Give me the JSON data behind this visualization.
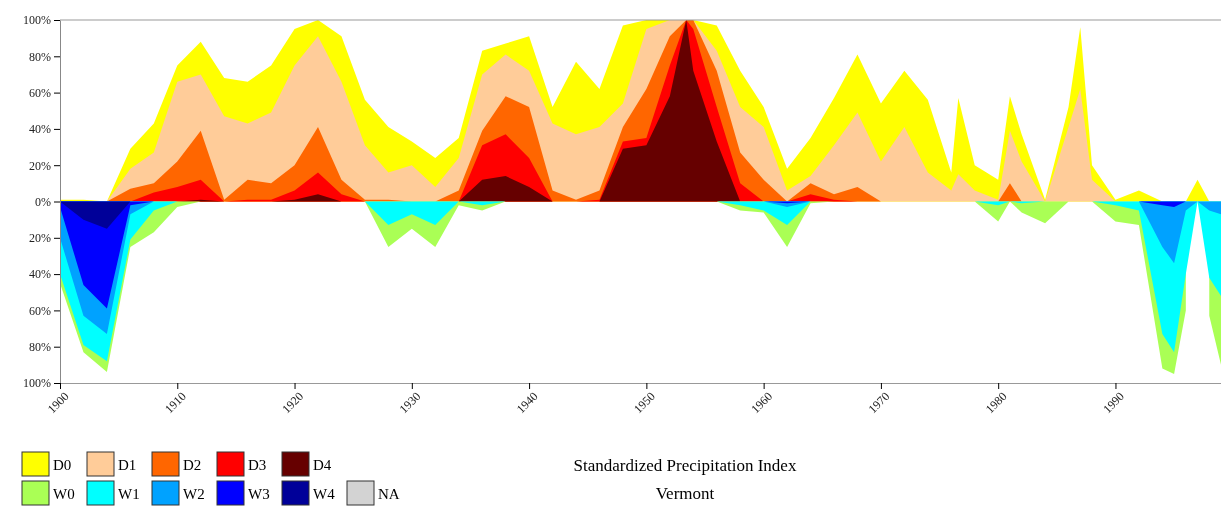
{
  "chart_data": {
    "type": "area",
    "title": "Standardized Precipitation Index",
    "subtitle": "Vermont",
    "x": [
      1900,
      1902,
      1904,
      1906,
      1908,
      1910,
      1912,
      1914,
      1916,
      1918,
      1920,
      1922,
      1924,
      1926,
      1928,
      1930,
      1932,
      1934,
      1936,
      1938,
      1940,
      1942,
      1944,
      1946,
      1948,
      1950,
      1952,
      1953.4,
      1954,
      1956,
      1958,
      1960,
      1962,
      1964,
      1966,
      1968,
      1970,
      1972,
      1974,
      1976,
      1976.6,
      1978,
      1980,
      1981,
      1982,
      1984,
      1986,
      1987,
      1988,
      1990,
      1992,
      1994,
      1995,
      1996,
      1997,
      1998,
      1999
    ],
    "xlim": [
      1900,
      1999
    ],
    "xticks": [
      1900,
      1910,
      1920,
      1930,
      1940,
      1950,
      1960,
      1970,
      1980,
      1990
    ],
    "ylim": [
      -100,
      100
    ],
    "yticks": [
      {
        "value": -100,
        "label": "100%"
      },
      {
        "value": -80,
        "label": "80%"
      },
      {
        "value": -60,
        "label": "60%"
      },
      {
        "value": -40,
        "label": "40%"
      },
      {
        "value": -20,
        "label": "20%"
      },
      {
        "value": 0,
        "label": "0%"
      },
      {
        "value": 20,
        "label": "20%"
      },
      {
        "value": 40,
        "label": "40%"
      },
      {
        "value": 60,
        "label": "60%"
      },
      {
        "value": 80,
        "label": "80%"
      },
      {
        "value": 100,
        "label": "100%"
      }
    ],
    "legend": "bottom left",
    "series": [
      {
        "name": "D0",
        "color": "#ffff00",
        "values": [
          1,
          1,
          0,
          29,
          43,
          75,
          88,
          68,
          66,
          75,
          95,
          100,
          91,
          56,
          41,
          33,
          24,
          35,
          83,
          87,
          91,
          52,
          77,
          62,
          97,
          100,
          100,
          100,
          100,
          97,
          72,
          52,
          18,
          35,
          57,
          81,
          54,
          72,
          56,
          16,
          57,
          20,
          12,
          58,
          37,
          1,
          52,
          96,
          20,
          1,
          6,
          0,
          null,
          0,
          12,
          0,
          null
        ]
      },
      {
        "name": "D1",
        "color": "#ffcc99",
        "values": [
          null,
          null,
          0,
          18,
          27,
          66,
          70,
          47,
          43,
          49,
          75,
          91,
          66,
          31,
          16,
          20,
          8,
          24,
          70,
          81,
          72,
          43,
          37,
          41,
          54,
          95,
          100,
          100,
          100,
          83,
          52,
          41,
          6,
          14,
          31,
          49,
          22,
          41,
          16,
          6,
          15,
          6,
          1,
          39,
          22,
          0,
          41,
          62,
          12,
          0,
          null,
          null,
          null,
          null,
          null,
          null,
          null
        ]
      },
      {
        "name": "D2",
        "color": "#ff6600",
        "values": [
          null,
          null,
          0,
          7,
          10,
          22,
          39,
          1,
          12,
          10,
          20,
          41,
          12,
          1,
          1,
          0,
          0,
          6,
          39,
          58,
          52,
          6,
          1,
          6,
          41,
          62,
          91,
          100,
          100,
          72,
          27,
          12,
          0,
          10,
          4,
          8,
          0,
          null,
          null,
          null,
          null,
          null,
          0,
          10,
          0,
          null,
          null,
          null,
          null,
          null,
          null,
          null,
          null,
          null,
          null,
          null,
          null
        ]
      },
      {
        "name": "D3",
        "color": "#ff0000",
        "values": [
          null,
          null,
          null,
          0,
          5,
          8,
          12,
          0,
          1,
          1,
          6,
          16,
          4,
          0,
          null,
          null,
          null,
          0,
          31,
          37,
          24,
          0,
          0,
          1,
          33,
          35,
          75,
          100,
          95,
          52,
          10,
          0,
          0,
          4,
          1,
          0,
          null,
          null,
          null,
          null,
          null,
          null,
          null,
          null,
          null,
          null,
          null,
          null,
          null,
          null,
          null,
          null,
          null,
          null,
          null,
          null,
          null
        ]
      },
      {
        "name": "D4",
        "color": "#660000",
        "values": [
          null,
          null,
          null,
          null,
          null,
          0,
          1,
          0,
          null,
          0,
          1,
          4,
          0,
          null,
          null,
          null,
          null,
          0,
          12,
          14,
          8,
          0,
          null,
          0,
          29,
          31,
          58,
          100,
          72,
          33,
          0,
          null,
          null,
          null,
          null,
          null,
          null,
          null,
          null,
          null,
          null,
          null,
          null,
          null,
          null,
          null,
          null,
          null,
          null,
          null,
          null,
          null,
          null,
          null,
          null,
          null,
          null
        ]
      },
      {
        "name": "W0",
        "color": "#aaff55",
        "values": [
          -45,
          -83,
          -94,
          -25,
          -17,
          -3,
          0,
          null,
          null,
          null,
          null,
          null,
          null,
          0,
          -25,
          -15,
          -25,
          -2,
          -5,
          0,
          null,
          null,
          null,
          null,
          null,
          null,
          null,
          null,
          null,
          0,
          -5,
          -6,
          -25,
          -1,
          0,
          null,
          null,
          null,
          null,
          null,
          null,
          0,
          -11,
          0,
          -6,
          -12,
          0,
          null,
          0,
          -11,
          -13,
          -92,
          -95,
          -60,
          null,
          -63,
          -90
        ]
      },
      {
        "name": "W1",
        "color": "#00ffff",
        "values": [
          -40,
          -79,
          -88,
          -21,
          -5,
          0,
          null,
          null,
          null,
          null,
          null,
          null,
          null,
          0,
          -13,
          -7,
          -13,
          0,
          -2,
          0,
          null,
          null,
          null,
          null,
          null,
          null,
          null,
          null,
          null,
          0,
          -2,
          -5,
          -13,
          0,
          null,
          null,
          null,
          null,
          null,
          null,
          null,
          0,
          -2,
          0,
          -1,
          0,
          null,
          null,
          0,
          -2,
          -5,
          -73,
          -83,
          -40,
          0,
          -42,
          -52
        ]
      },
      {
        "name": "W2",
        "color": "#00a2ff",
        "values": [
          -20,
          -63,
          -73,
          -7,
          0,
          null,
          null,
          null,
          null,
          null,
          null,
          null,
          null,
          null,
          null,
          null,
          null,
          null,
          null,
          null,
          null,
          null,
          null,
          null,
          null,
          null,
          null,
          null,
          null,
          null,
          null,
          0,
          -3,
          0,
          null,
          null,
          null,
          null,
          null,
          null,
          null,
          null,
          null,
          null,
          null,
          null,
          null,
          null,
          null,
          null,
          0,
          -25,
          -34,
          -5,
          0,
          -5,
          -7
        ]
      },
      {
        "name": "W3",
        "color": "#0000ff",
        "values": [
          -3,
          -46,
          -59,
          -2,
          0,
          null,
          null,
          null,
          null,
          null,
          null,
          null,
          null,
          null,
          null,
          null,
          null,
          null,
          null,
          null,
          null,
          null,
          null,
          null,
          null,
          null,
          null,
          null,
          null,
          null,
          null,
          0,
          -1,
          0,
          null,
          null,
          null,
          null,
          null,
          null,
          null,
          null,
          null,
          null,
          null,
          null,
          null,
          null,
          null,
          null,
          0,
          -2,
          -3,
          0,
          null,
          null,
          null
        ]
      },
      {
        "name": "W4",
        "color": "#000099",
        "values": [
          0,
          -10,
          -15,
          0,
          null,
          null,
          null,
          null,
          null,
          null,
          null,
          null,
          null,
          null,
          null,
          null,
          null,
          null,
          null,
          null,
          null,
          null,
          null,
          null,
          null,
          null,
          null,
          null,
          null,
          null,
          null,
          null,
          null,
          null,
          null,
          null,
          null,
          null,
          null,
          null,
          null,
          null,
          null,
          null,
          null,
          null,
          null,
          null,
          null,
          null,
          null,
          null,
          null,
          null,
          null,
          null,
          null
        ]
      },
      {
        "name": "NA",
        "color": "#d3d3d3",
        "values": [
          null,
          null,
          null,
          null,
          null,
          null,
          null,
          null,
          null,
          null,
          null,
          null,
          null,
          null,
          null,
          null,
          null,
          null,
          null,
          null,
          null,
          null,
          null,
          null,
          null,
          null,
          null,
          null,
          null,
          null,
          null,
          null,
          null,
          null,
          null,
          null,
          null,
          null,
          null,
          null,
          null,
          null,
          null,
          null,
          null,
          null,
          null,
          null,
          null,
          null,
          null,
          null,
          null,
          null,
          null,
          null,
          null
        ]
      }
    ]
  }
}
